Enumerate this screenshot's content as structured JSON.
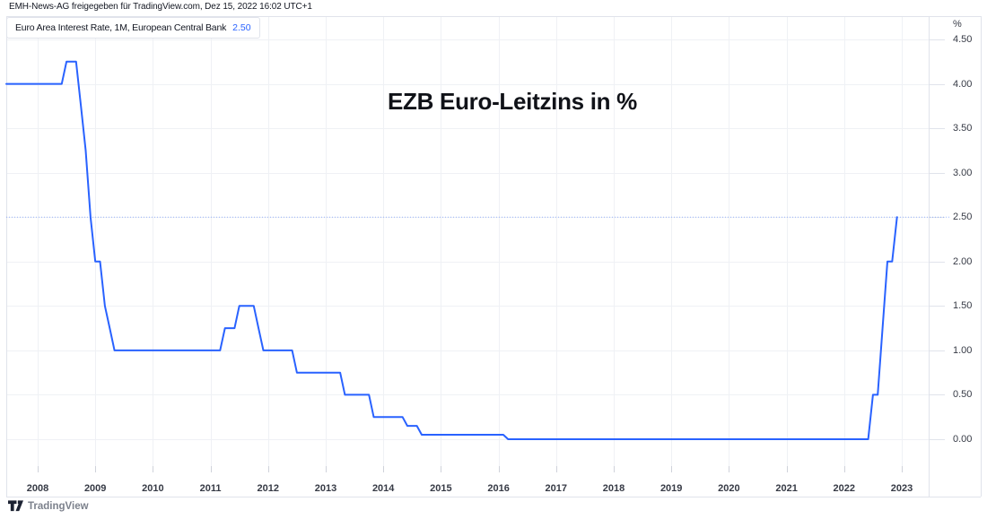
{
  "attribution": "EMH-News-AG freigegeben für TradingView.com, Dez 15, 2022 16:02 UTC+1",
  "legend": {
    "series_title": "Euro Area Interest Rate, 1M, European Central Bank",
    "value": "2.50"
  },
  "title": "EZB Euro-Leitzins in %",
  "branding": {
    "logo_text": "TradingView"
  },
  "chart_data": {
    "type": "line",
    "title": "EZB Euro-Leitzins in %",
    "series_name": "Euro Area Interest Rate, 1M, European Central Bank",
    "timeframe": "1M",
    "unit": "%",
    "last_value": 2.5,
    "price_line_value": 2.5,
    "grid": true,
    "legend_position": "top-left",
    "ylim": [
      0,
      4.5
    ],
    "xlim_years": [
      2007.455,
      2023.468
    ],
    "y_ticks": [
      {
        "v": 0.0,
        "t": "0.00"
      },
      {
        "v": 0.5,
        "t": "0.50"
      },
      {
        "v": 1.0,
        "t": "1.00"
      },
      {
        "v": 1.5,
        "t": "1.50"
      },
      {
        "v": 2.0,
        "t": "2.00"
      },
      {
        "v": 2.5,
        "t": "2.50"
      },
      {
        "v": 3.0,
        "t": "3.00"
      },
      {
        "v": 3.5,
        "t": "3.50"
      },
      {
        "v": 4.0,
        "t": "4.00"
      },
      {
        "v": 4.5,
        "t": "4.50"
      }
    ],
    "x_ticks": [
      {
        "v": 2008,
        "t": "2008"
      },
      {
        "v": 2009,
        "t": "2009"
      },
      {
        "v": 2010,
        "t": "2010"
      },
      {
        "v": 2011,
        "t": "2011"
      },
      {
        "v": 2012,
        "t": "2012"
      },
      {
        "v": 2013,
        "t": "2013"
      },
      {
        "v": 2014,
        "t": "2014"
      },
      {
        "v": 2015,
        "t": "2015"
      },
      {
        "v": 2016,
        "t": "2016"
      },
      {
        "v": 2017,
        "t": "2017"
      },
      {
        "v": 2018,
        "t": "2018"
      },
      {
        "v": 2019,
        "t": "2019"
      },
      {
        "v": 2020,
        "t": "2020"
      },
      {
        "v": 2021,
        "t": "2021"
      },
      {
        "v": 2022,
        "t": "2022"
      },
      {
        "v": 2023,
        "t": "2023"
      }
    ],
    "points": [
      [
        "2007-06",
        4.0
      ],
      [
        "2008-06",
        4.0
      ],
      [
        "2008-07",
        4.25
      ],
      [
        "2008-09",
        4.25
      ],
      [
        "2008-10",
        3.75
      ],
      [
        "2008-11",
        3.25
      ],
      [
        "2008-12",
        2.5
      ],
      [
        "2009-01",
        2.0
      ],
      [
        "2009-02",
        2.0
      ],
      [
        "2009-03",
        1.5
      ],
      [
        "2009-04",
        1.25
      ],
      [
        "2009-05",
        1.0
      ],
      [
        "2011-03",
        1.0
      ],
      [
        "2011-04",
        1.25
      ],
      [
        "2011-06",
        1.25
      ],
      [
        "2011-07",
        1.5
      ],
      [
        "2011-10",
        1.5
      ],
      [
        "2011-11",
        1.25
      ],
      [
        "2011-12",
        1.0
      ],
      [
        "2012-06",
        1.0
      ],
      [
        "2012-07",
        0.75
      ],
      [
        "2013-04",
        0.75
      ],
      [
        "2013-05",
        0.5
      ],
      [
        "2013-10",
        0.5
      ],
      [
        "2013-11",
        0.25
      ],
      [
        "2014-05",
        0.25
      ],
      [
        "2014-06",
        0.15
      ],
      [
        "2014-08",
        0.15
      ],
      [
        "2014-09",
        0.05
      ],
      [
        "2016-02",
        0.05
      ],
      [
        "2016-03",
        0.0
      ],
      [
        "2022-06",
        0.0
      ],
      [
        "2022-07",
        0.5
      ],
      [
        "2022-08",
        0.5
      ],
      [
        "2022-09",
        1.25
      ],
      [
        "2022-10",
        2.0
      ],
      [
        "2022-11",
        2.0
      ],
      [
        "2022-12",
        2.5
      ]
    ],
    "colors": {
      "line": "#2962FF",
      "price_line": "#2962FF",
      "grid": "#eff1f5",
      "border": "#e0e3eb",
      "tick": "#cfd2da",
      "axis_text": "#363a45"
    }
  }
}
